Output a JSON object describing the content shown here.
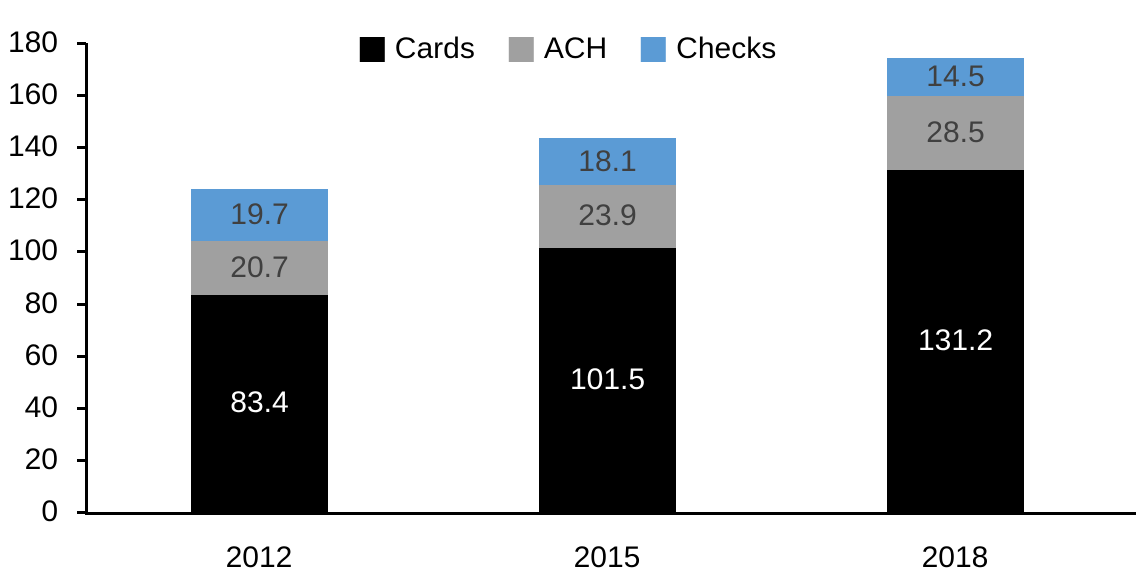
{
  "chart_data": {
    "type": "bar",
    "stacked": true,
    "title": "",
    "xlabel": "",
    "ylabel": "",
    "categories": [
      "2012",
      "2015",
      "2018"
    ],
    "series": [
      {
        "name": "Cards",
        "color": "#000000",
        "label_color": "#ffffff",
        "values": [
          83.4,
          101.5,
          131.2
        ]
      },
      {
        "name": "ACH",
        "color": "#A0A0A0",
        "label_color": "#404040",
        "values": [
          20.7,
          23.9,
          28.5
        ]
      },
      {
        "name": "Checks",
        "color": "#5B9BD5",
        "label_color": "#404040",
        "values": [
          19.7,
          18.1,
          14.5
        ]
      }
    ],
    "totals": [
      123.8,
      143.5,
      174.2
    ],
    "ylim": [
      0,
      180
    ],
    "yticks": [
      0,
      20,
      40,
      60,
      80,
      100,
      120,
      140,
      160,
      180
    ],
    "value_decimals": 1,
    "grid": false,
    "legend_position": "top-center",
    "axis_color": "#000000",
    "background_color": "#ffffff"
  }
}
